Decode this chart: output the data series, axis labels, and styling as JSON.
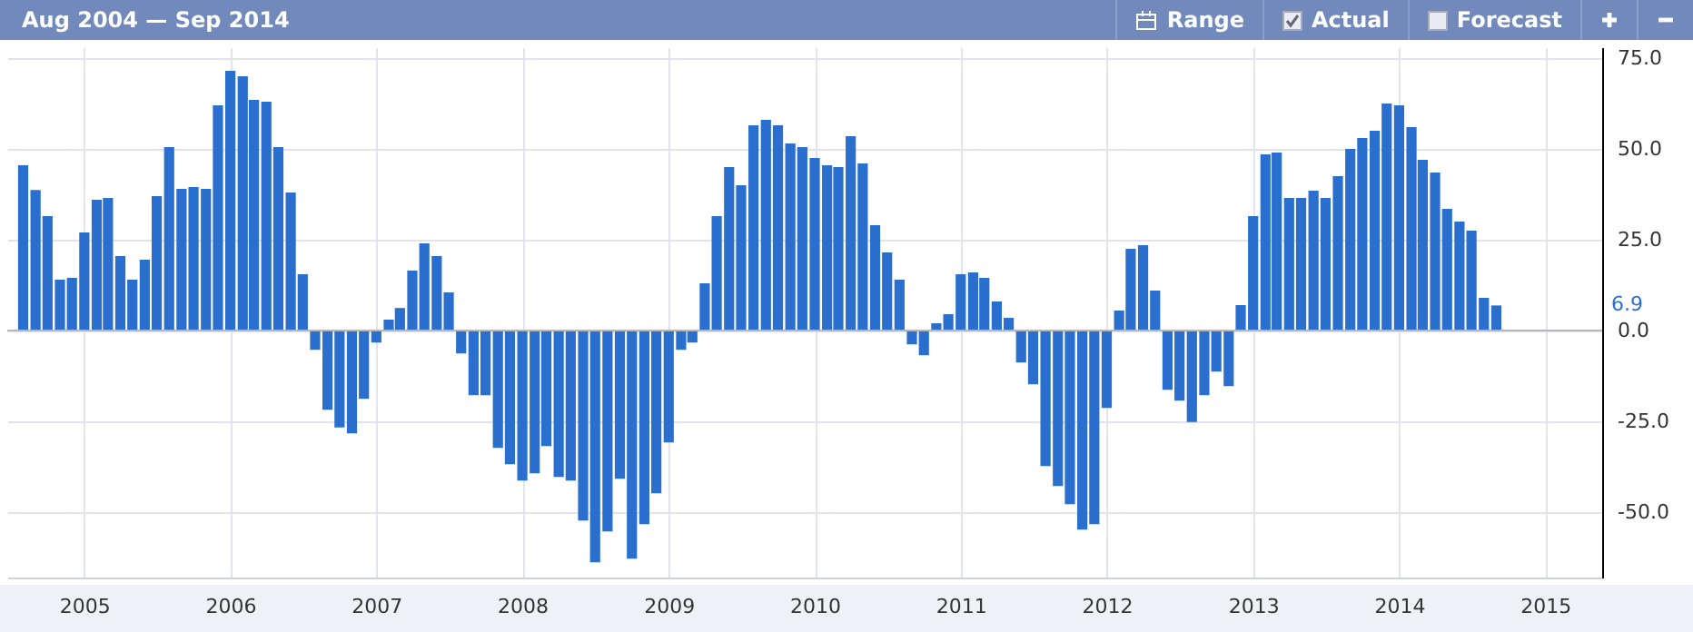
{
  "chart_data": {
    "type": "bar",
    "title": "Aug 2004 — Sep 2014",
    "x": [
      "2004-08",
      "2004-09",
      "2004-10",
      "2004-11",
      "2004-12",
      "2005-01",
      "2005-02",
      "2005-03",
      "2005-04",
      "2005-05",
      "2005-06",
      "2005-07",
      "2005-08",
      "2005-09",
      "2005-10",
      "2005-11",
      "2005-12",
      "2006-01",
      "2006-02",
      "2006-03",
      "2006-04",
      "2006-05",
      "2006-06",
      "2006-07",
      "2006-08",
      "2006-09",
      "2006-10",
      "2006-11",
      "2006-12",
      "2007-01",
      "2007-02",
      "2007-03",
      "2007-04",
      "2007-05",
      "2007-06",
      "2007-07",
      "2007-08",
      "2007-09",
      "2007-10",
      "2007-11",
      "2007-12",
      "2008-01",
      "2008-02",
      "2008-03",
      "2008-04",
      "2008-05",
      "2008-06",
      "2008-07",
      "2008-08",
      "2008-09",
      "2008-10",
      "2008-11",
      "2008-12",
      "2009-01",
      "2009-02",
      "2009-03",
      "2009-04",
      "2009-05",
      "2009-06",
      "2009-07",
      "2009-08",
      "2009-09",
      "2009-10",
      "2009-11",
      "2009-12",
      "2010-01",
      "2010-02",
      "2010-03",
      "2010-04",
      "2010-05",
      "2010-06",
      "2010-07",
      "2010-08",
      "2010-09",
      "2010-10",
      "2010-11",
      "2010-12",
      "2011-01",
      "2011-02",
      "2011-03",
      "2011-04",
      "2011-05",
      "2011-06",
      "2011-07",
      "2011-08",
      "2011-09",
      "2011-10",
      "2011-11",
      "2011-12",
      "2012-01",
      "2012-02",
      "2012-03",
      "2012-04",
      "2012-05",
      "2012-06",
      "2012-07",
      "2012-08",
      "2012-09",
      "2012-10",
      "2012-11",
      "2012-12",
      "2013-01",
      "2013-02",
      "2013-03",
      "2013-04",
      "2013-05",
      "2013-06",
      "2013-07",
      "2013-08",
      "2013-09",
      "2013-10",
      "2013-11",
      "2013-12",
      "2014-01",
      "2014-02",
      "2014-03",
      "2014-04",
      "2014-05",
      "2014-06",
      "2014-07",
      "2014-08",
      "2014-09"
    ],
    "values": [
      45.5,
      38.7,
      31.5,
      14,
      14.5,
      27,
      36,
      36.5,
      20.5,
      14,
      19.5,
      37,
      50.5,
      39,
      39.5,
      39,
      62,
      71.5,
      70,
      63.5,
      63,
      50.5,
      38,
      15.5,
      -5.3,
      -21.8,
      -26.7,
      -28.3,
      -18.8,
      -3.3,
      3,
      6.2,
      16.5,
      24,
      20.5,
      10.5,
      -6.3,
      -17.8,
      -17.8,
      -32.3,
      -36.8,
      -41.3,
      -39.3,
      -31.8,
      -40.3,
      -41.3,
      -52.3,
      -63.8,
      -55.3,
      -40.8,
      -62.8,
      -53.3,
      -44.8,
      -30.8,
      -5.3,
      -3.3,
      13,
      31.5,
      45,
      40,
      56.5,
      58,
      56.5,
      51.5,
      50.5,
      47.5,
      45.5,
      45,
      53.5,
      46,
      29,
      21.5,
      14,
      -3.8,
      -6.8,
      2,
      4.5,
      15.5,
      16,
      14.5,
      8,
      3.5,
      -8.8,
      -14.8,
      -37.3,
      -42.8,
      -47.8,
      -54.8,
      -53.3,
      -21.3,
      5.5,
      22.5,
      23.5,
      11,
      -16.3,
      -19.3,
      -25.2,
      -17.8,
      -11.3,
      -15.3,
      7,
      31.5,
      48.5,
      49,
      36.5,
      36.5,
      38.5,
      36.5,
      42.5,
      50,
      53,
      55,
      62.5,
      62,
      56,
      47,
      43.5,
      33.5,
      30,
      27.5,
      9,
      6.9
    ],
    "color": "#2b6fce",
    "xlim": [
      "2004-07-15",
      "2015-05"
    ],
    "xticks": [
      "2005",
      "2006",
      "2007",
      "2008",
      "2009",
      "2010",
      "2011",
      "2012",
      "2013",
      "2014",
      "2015"
    ],
    "ylim": [
      -68,
      78
    ],
    "yticks": [
      {
        "value": 75,
        "label": "75.0"
      },
      {
        "value": 50,
        "label": "50.0"
      },
      {
        "value": 25,
        "label": "25.0"
      },
      {
        "value": 0,
        "label": "0.0"
      },
      {
        "value": -25,
        "label": "-25.0"
      },
      {
        "value": -50,
        "label": "-50.0"
      }
    ],
    "grid": true,
    "ref_lines": [
      {
        "axis": "y",
        "value": 0,
        "color": "#b4b6c0"
      }
    ],
    "annotations": [
      "Range",
      "Actual",
      "Forecast",
      "6.9"
    ]
  }
}
